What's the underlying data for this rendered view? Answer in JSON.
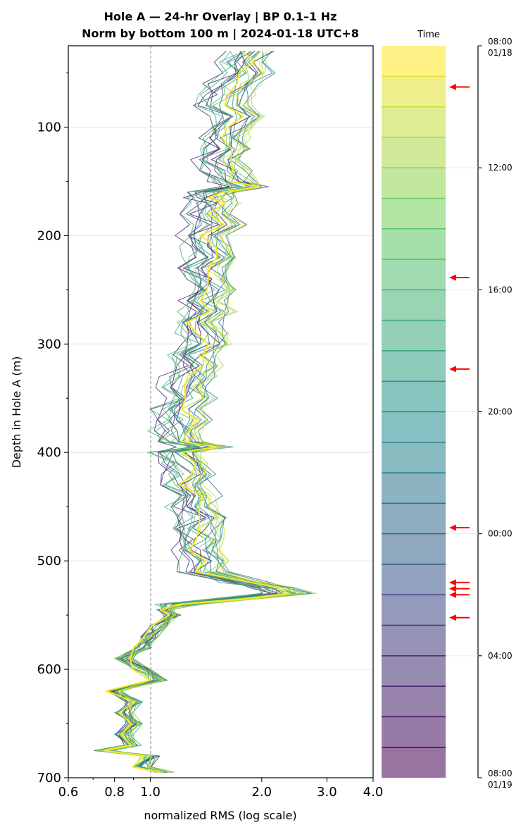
{
  "chart_data": {
    "type": "line",
    "title_line1": "Hole A — 24-hr Overlay  |  BP 0.1–1 Hz",
    "title_line2": "Norm by bottom 100 m  |  2024-01-18 UTC+8",
    "xlabel": "normalized RMS  (log scale)",
    "ylabel": "Depth in Hole A (m)",
    "x_scale": "log",
    "xlim": [
      0.6,
      4.0
    ],
    "ylim": [
      700,
      25
    ],
    "x_ticks": [
      0.6,
      0.8,
      1.0,
      2.0,
      3.0,
      4.0
    ],
    "x_tick_labels": [
      "0.6",
      "0.8",
      "1.0",
      "2.0",
      "3.0",
      "4.0"
    ],
    "y_ticks": [
      100,
      200,
      300,
      400,
      500,
      600,
      700
    ],
    "y_tick_labels": [
      "100",
      "200",
      "300",
      "400",
      "500",
      "600",
      "700"
    ],
    "reference_line_x": 1.0,
    "grid": "horizontal",
    "series_count": 24,
    "depth_profile": {
      "depth": [
        30,
        40,
        50,
        60,
        70,
        80,
        90,
        100,
        110,
        120,
        130,
        140,
        150,
        155,
        160,
        165,
        170,
        180,
        190,
        200,
        210,
        220,
        230,
        240,
        250,
        260,
        270,
        280,
        290,
        300,
        310,
        320,
        330,
        340,
        350,
        360,
        370,
        380,
        390,
        395,
        400,
        410,
        420,
        430,
        440,
        450,
        460,
        470,
        480,
        490,
        500,
        510,
        520,
        525,
        530,
        535,
        540,
        545,
        550,
        560,
        570,
        580,
        590,
        600,
        610,
        620,
        630,
        640,
        650,
        660,
        670,
        675,
        680,
        690,
        695
      ],
      "rms": [
        1.9,
        1.8,
        1.85,
        1.7,
        1.65,
        1.6,
        1.75,
        1.7,
        1.6,
        1.65,
        1.55,
        1.6,
        1.7,
        1.85,
        1.5,
        1.45,
        1.5,
        1.45,
        1.55,
        1.4,
        1.45,
        1.5,
        1.4,
        1.45,
        1.5,
        1.4,
        1.45,
        1.35,
        1.4,
        1.45,
        1.3,
        1.35,
        1.3,
        1.25,
        1.3,
        1.2,
        1.25,
        1.2,
        1.22,
        1.45,
        1.2,
        1.25,
        1.3,
        1.25,
        1.35,
        1.3,
        1.4,
        1.35,
        1.4,
        1.35,
        1.45,
        1.4,
        1.8,
        2.2,
        2.4,
        1.7,
        1.2,
        1.1,
        1.15,
        1.05,
        1.0,
        0.95,
        0.85,
        0.95,
        1.05,
        0.8,
        0.9,
        0.85,
        0.9,
        0.85,
        0.9,
        0.75,
        1.0,
        0.95,
        1.1
      ]
    },
    "colorbar": {
      "label": "Time",
      "start_label": [
        "08:00",
        "01/18"
      ],
      "end_label": [
        "08:00",
        "01/19"
      ],
      "tick_labels": [
        "12:00",
        "16:00",
        "20:00",
        "00:00",
        "04:00"
      ],
      "tick_hours": [
        4,
        8,
        12,
        16,
        20
      ],
      "bins": 24,
      "arrow_hours": [
        1.35,
        7.6,
        10.6,
        15.8,
        17.6,
        17.8,
        18.0,
        18.75
      ],
      "arrow_color": "#ff0000"
    }
  }
}
